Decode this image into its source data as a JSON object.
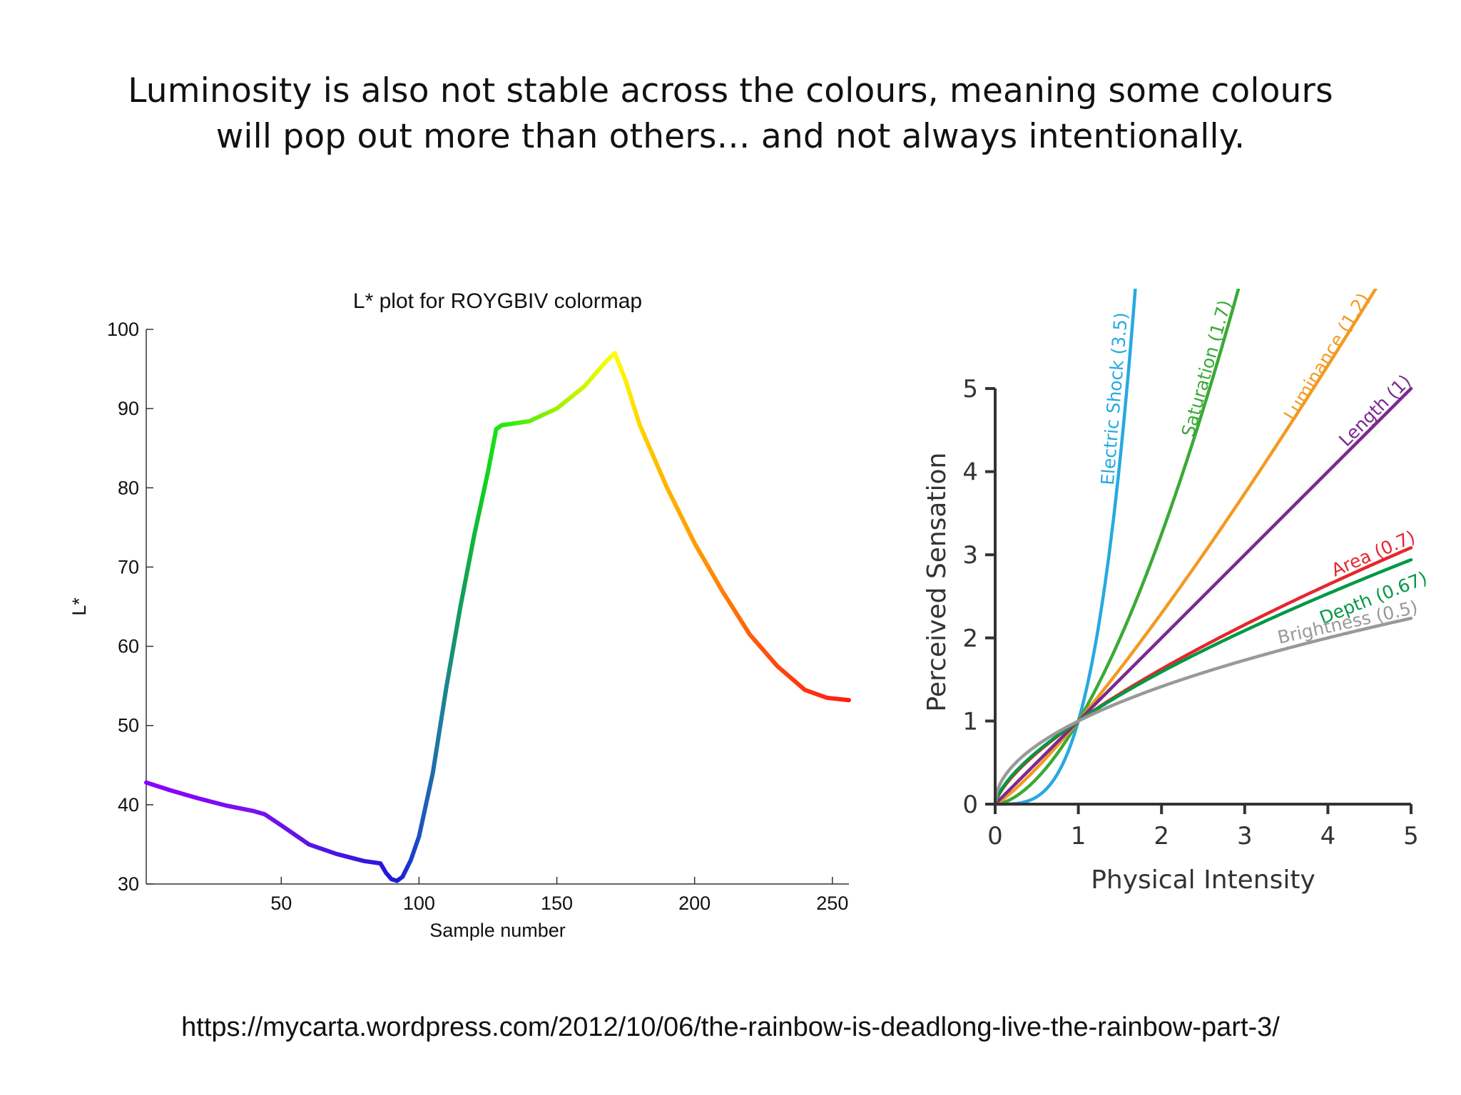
{
  "slide": {
    "title_lines": [
      "Luminosity is also not stable across the colours, meaning some colours",
      "will pop out more than others… and not always intentionally."
    ],
    "source_url": "https://mycarta.wordpress.com/2012/10/06/the-rainbow-is-deadlong-live-the-rainbow-part-3/"
  },
  "chart_data": [
    {
      "type": "line",
      "title": "L* plot for ROYGBIV colormap",
      "xlabel": "Sample number",
      "ylabel": "L*",
      "xlim": [
        1,
        256
      ],
      "ylim": [
        30,
        100
      ],
      "x_ticks": [
        50,
        100,
        150,
        200,
        250
      ],
      "y_ticks": [
        30,
        40,
        50,
        60,
        70,
        80,
        90,
        100
      ],
      "grid": false,
      "series": [
        {
          "points": [
            [
              1,
              42.8
            ],
            [
              10,
              41.8
            ],
            [
              20,
              40.8
            ],
            [
              30,
              39.9
            ],
            [
              40,
              39.2
            ],
            [
              44,
              38.8
            ],
            [
              50,
              37.4
            ],
            [
              60,
              35.0
            ],
            [
              70,
              33.8
            ],
            [
              80,
              32.9
            ],
            [
              86,
              32.6
            ],
            [
              88,
              31.4
            ],
            [
              90,
              30.6
            ],
            [
              92,
              30.4
            ],
            [
              94,
              30.9
            ],
            [
              97,
              33.0
            ],
            [
              100,
              36.0
            ],
            [
              105,
              44.0
            ],
            [
              110,
              55.0
            ],
            [
              115,
              65.0
            ],
            [
              120,
              74.0
            ],
            [
              125,
              82.0
            ],
            [
              128,
              87.4
            ],
            [
              130,
              87.9
            ],
            [
              140,
              88.4
            ],
            [
              150,
              90.0
            ],
            [
              160,
              92.8
            ],
            [
              168,
              96.0
            ],
            [
              171,
              97.0
            ],
            [
              175,
              93.5
            ],
            [
              180,
              88.0
            ],
            [
              190,
              80.0
            ],
            [
              200,
              73.0
            ],
            [
              210,
              67.0
            ],
            [
              220,
              61.5
            ],
            [
              230,
              57.5
            ],
            [
              240,
              54.5
            ],
            [
              248,
              53.5
            ],
            [
              256,
              53.2
            ]
          ],
          "colormap": "ROYGBIV (violet → blue → cyan → green → yellow → orange → red)",
          "color_stops": [
            [
              1,
              "#8a00ff"
            ],
            [
              40,
              "#7a10ee"
            ],
            [
              60,
              "#5a14e6"
            ],
            [
              85,
              "#2f16e0"
            ],
            [
              92,
              "#1a18d8"
            ],
            [
              100,
              "#1e50c4"
            ],
            [
              108,
              "#1e7e9c"
            ],
            [
              116,
              "#10a058"
            ],
            [
              124,
              "#10d020"
            ],
            [
              130,
              "#20ea10"
            ],
            [
              150,
              "#a0f000"
            ],
            [
              171,
              "#ffff00"
            ],
            [
              185,
              "#ffc000"
            ],
            [
              205,
              "#ff9000"
            ],
            [
              225,
              "#ff5010"
            ],
            [
              256,
              "#ff1a10"
            ]
          ]
        }
      ]
    },
    {
      "type": "line",
      "title": "",
      "xlabel": "Physical Intensity",
      "ylabel": "Perceived Sensation",
      "xlim": [
        0,
        5
      ],
      "ylim": [
        0,
        5
      ],
      "x_ticks": [
        0,
        1,
        2,
        3,
        4,
        5
      ],
      "y_ticks": [
        0,
        1,
        2,
        3,
        4,
        5
      ],
      "grid": false,
      "model": "y = x^exponent",
      "series": [
        {
          "name": "Electric Shock (3.5)",
          "exponent": 3.5,
          "color": "#27a9e1"
        },
        {
          "name": "Saturation (1.7)",
          "exponent": 1.7,
          "color": "#3aaa35"
        },
        {
          "name": "Luminance (1.2)",
          "exponent": 1.2,
          "color": "#f39a21"
        },
        {
          "name": "Length (1)",
          "exponent": 1.0,
          "color": "#7b2a8e"
        },
        {
          "name": "Area (0.7)",
          "exponent": 0.7,
          "color": "#e5262e"
        },
        {
          "name": "Depth (0.67)",
          "exponent": 0.67,
          "color": "#009845"
        },
        {
          "name": "Brightness (0.5)",
          "exponent": 0.5,
          "color": "#999999"
        }
      ]
    }
  ]
}
